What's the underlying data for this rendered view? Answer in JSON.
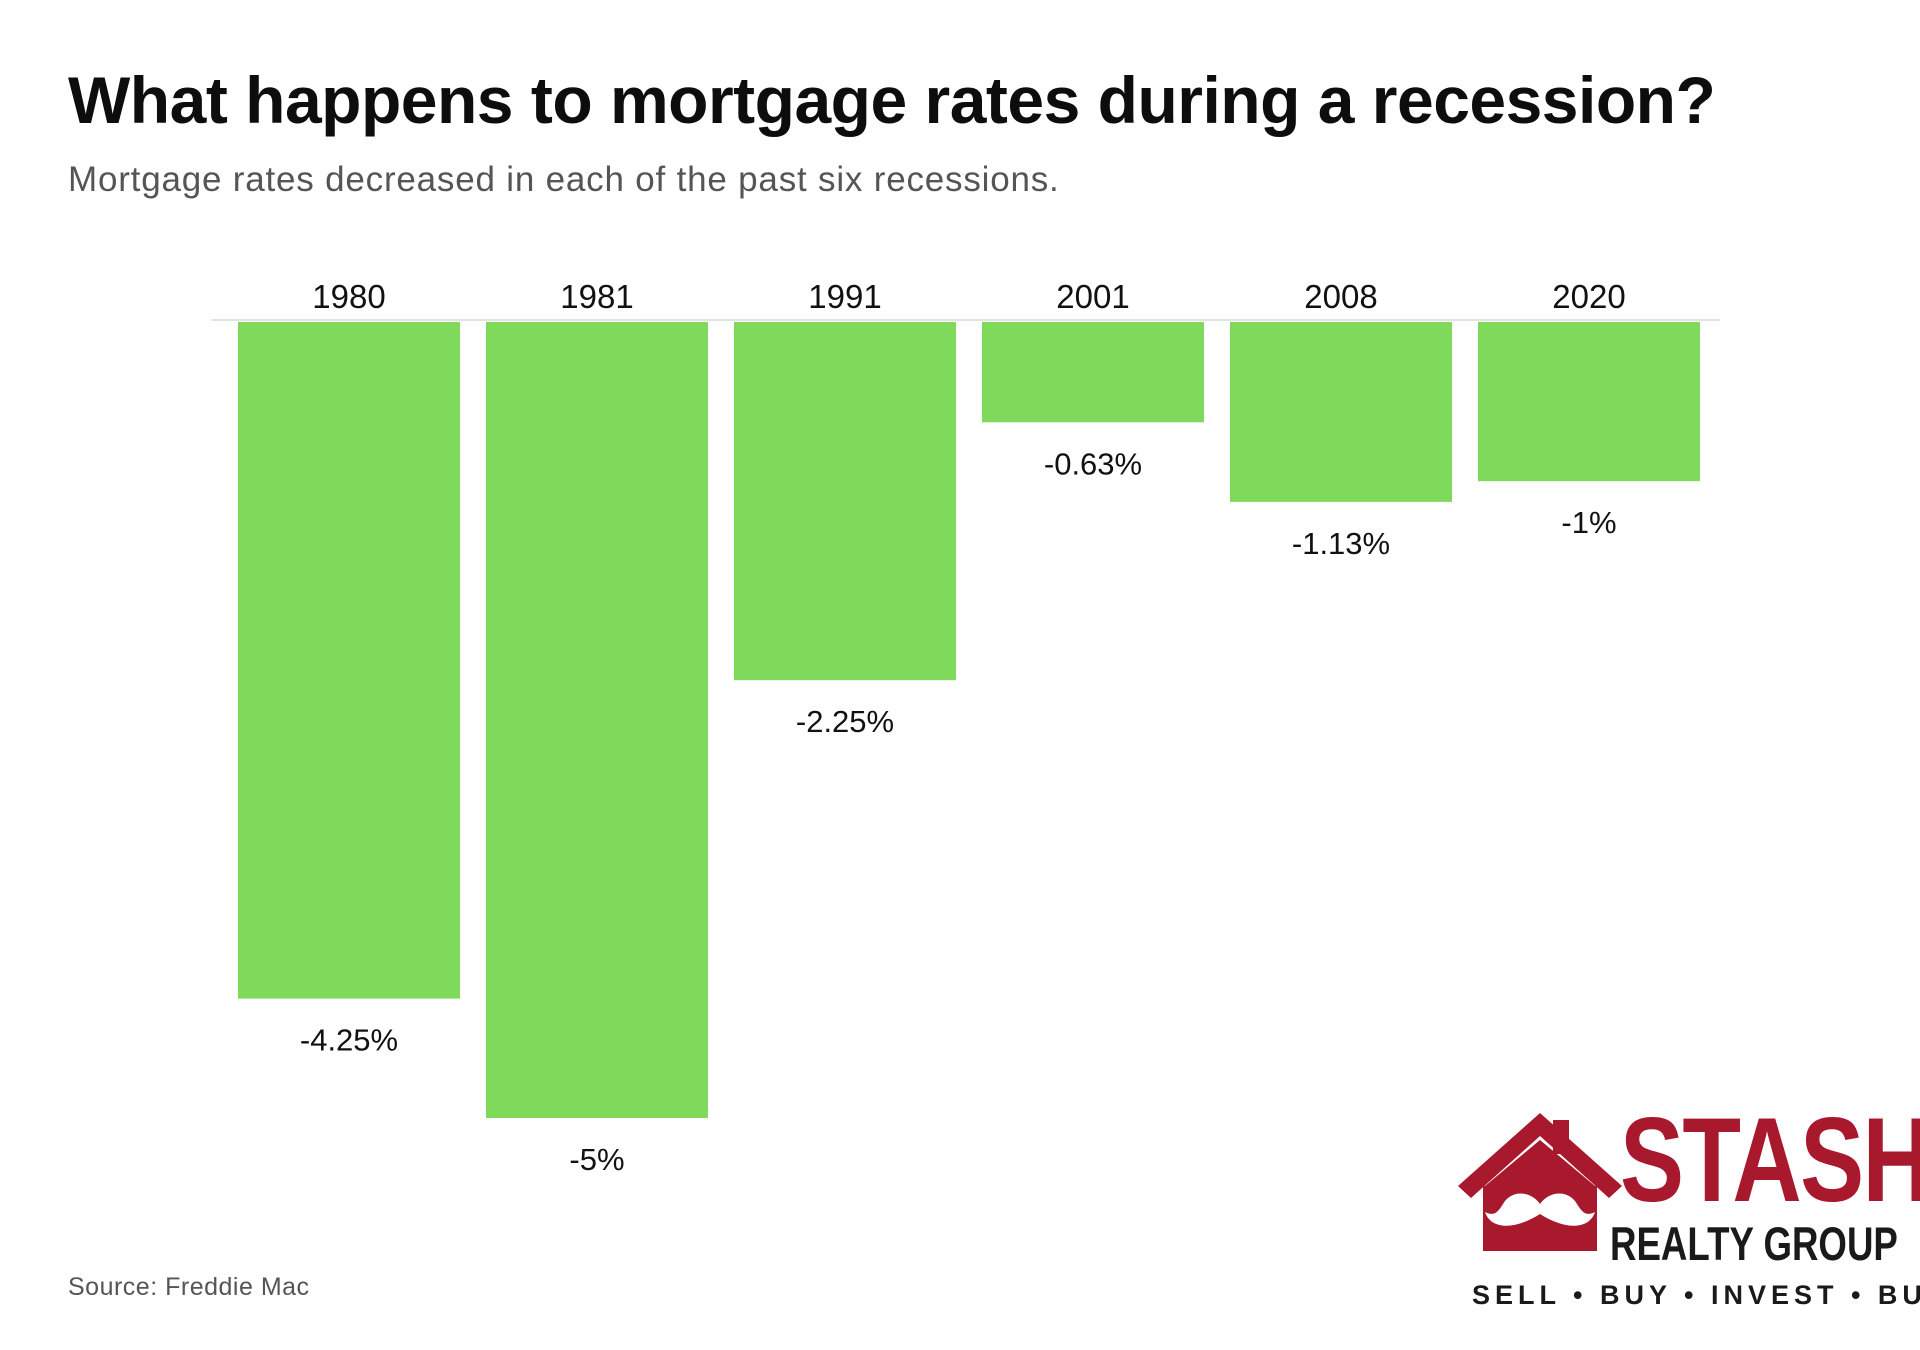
{
  "title": "What happens to mortgage rates during a recession?",
  "subtitle": "Mortgage rates decreased in each of the past six recessions.",
  "source": "Source: Freddie Mac",
  "logo": {
    "name": "STASH",
    "subname": "REALTY GROUP",
    "tagline": "SELL • BUY • INVEST • BUILD",
    "icon": "house-mustache-icon"
  },
  "colors": {
    "bar": "#7fd95b",
    "logo_red": "#a8192d",
    "baseline": "#e2e2e2"
  },
  "chart_data": {
    "type": "bar",
    "orientation": "vertical",
    "categories": [
      "1980",
      "1981",
      "1991",
      "2001",
      "2008",
      "2020"
    ],
    "values": [
      -4.25,
      -5,
      -2.25,
      -0.63,
      -1.13,
      -1
    ],
    "data_labels": [
      "-4.25%",
      "-5%",
      "-2.25%",
      "-0.63%",
      "-1.13%",
      "-1%"
    ],
    "category_axis_position": "top",
    "ylim": [
      -5,
      0
    ],
    "grid": false,
    "legend": "none"
  }
}
